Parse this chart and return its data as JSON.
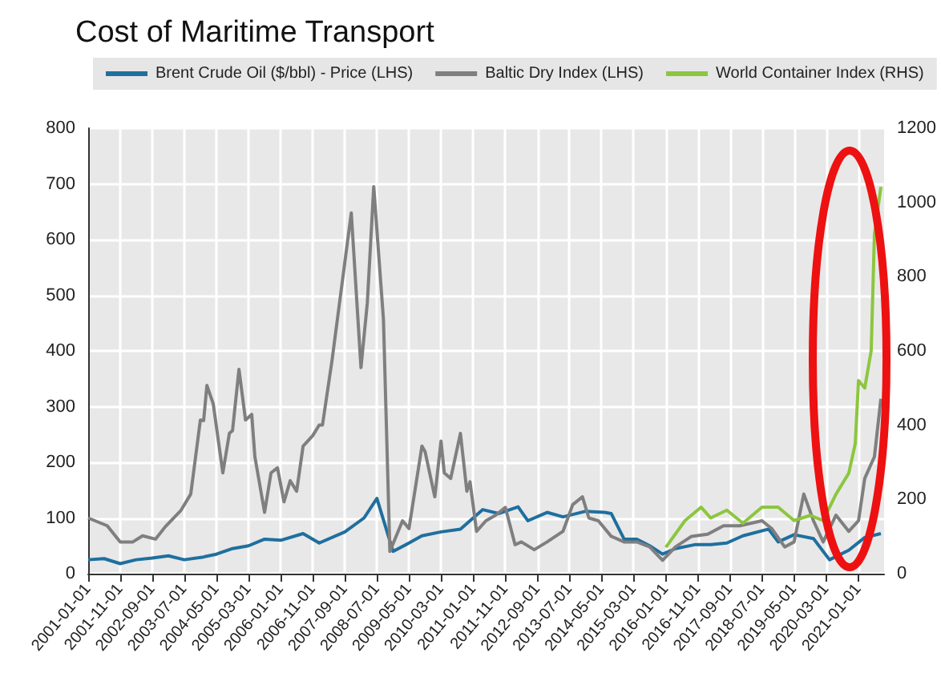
{
  "chart_data": {
    "type": "line",
    "title": "Cost of Maritime Transport",
    "legend": "top",
    "grid": true,
    "marker": "none",
    "line_style": "solid",
    "xlim": [
      "2001-01-01",
      "2021-09-01"
    ],
    "xticks": [
      "2001-01-01",
      "2001-11-01",
      "2002-09-01",
      "2003-07-01",
      "2004-05-01",
      "2005-03-01",
      "2006-01-01",
      "2006-11-01",
      "2007-09-01",
      "2008-07-01",
      "2009-05-01",
      "2010-03-01",
      "2011-01-01",
      "2011-11-01",
      "2012-09-01",
      "2013-07-01",
      "2014-05-01",
      "2015-03-01",
      "2016-01-01",
      "2016-11-01",
      "2017-09-01",
      "2018-07-01",
      "2019-05-01",
      "2020-03-01",
      "2021-01-01"
    ],
    "ylim": [
      0,
      800
    ],
    "yticks": [
      0,
      100,
      200,
      300,
      400,
      500,
      600,
      700,
      800
    ],
    "y2lim": [
      0,
      1200
    ],
    "y2ticks": [
      0,
      200,
      400,
      600,
      800,
      1000,
      1200
    ],
    "series": [
      {
        "name": "Brent Crude Oil ($/bbl) - Price (LHS)",
        "color": "#1f6f9f",
        "x": [
          "2001-01",
          "2001-06",
          "2001-11",
          "2002-04",
          "2002-09",
          "2003-02",
          "2003-07",
          "2004-01",
          "2004-05",
          "2004-10",
          "2005-03",
          "2005-08",
          "2006-01",
          "2006-08",
          "2007-01",
          "2007-09",
          "2008-03",
          "2008-07",
          "2008-12",
          "2009-05",
          "2009-09",
          "2010-03",
          "2010-09",
          "2011-04",
          "2011-09",
          "2012-03",
          "2012-06",
          "2012-12",
          "2013-05",
          "2013-12",
          "2014-06",
          "2014-08",
          "2014-12",
          "2015-04",
          "2015-08",
          "2015-12",
          "2016-04",
          "2016-10",
          "2017-03",
          "2017-08",
          "2018-01",
          "2018-09",
          "2018-12",
          "2019-05",
          "2019-11",
          "2020-04",
          "2020-10",
          "2021-03",
          "2021-08"
        ],
        "values": [
          25,
          27,
          18,
          25,
          28,
          32,
          25,
          30,
          35,
          45,
          50,
          62,
          60,
          72,
          55,
          75,
          100,
          135,
          40,
          55,
          68,
          75,
          80,
          115,
          108,
          120,
          95,
          110,
          102,
          112,
          110,
          108,
          62,
          62,
          50,
          35,
          45,
          52,
          52,
          55,
          68,
          80,
          57,
          70,
          63,
          25,
          42,
          65,
          72
        ]
      },
      {
        "name": "Baltic Dry Index (LHS)",
        "color": "#7f7f7f",
        "x": [
          "2001-01",
          "2001-07",
          "2001-11",
          "2002-03",
          "2002-06",
          "2002-10",
          "2003-01",
          "2003-06",
          "2003-09",
          "2003-12",
          "2004-01",
          "2004-02",
          "2004-04",
          "2004-07",
          "2004-09",
          "2004-10",
          "2004-12",
          "2005-02",
          "2005-04",
          "2005-05",
          "2005-08",
          "2005-10",
          "2005-12",
          "2006-02",
          "2006-04",
          "2006-06",
          "2006-08",
          "2006-11",
          "2007-01",
          "2007-02",
          "2007-05",
          "2007-11",
          "2008-02",
          "2008-04",
          "2008-06",
          "2008-09",
          "2008-11",
          "2009-03",
          "2009-05",
          "2009-09",
          "2009-10",
          "2010-01",
          "2010-03",
          "2010-04",
          "2010-06",
          "2010-09",
          "2010-11",
          "2010-12",
          "2011-02",
          "2011-05",
          "2011-08",
          "2011-11",
          "2012-02",
          "2012-04",
          "2012-08",
          "2012-12",
          "2013-05",
          "2013-08",
          "2013-11",
          "2014-01",
          "2014-04",
          "2014-08",
          "2014-12",
          "2015-04",
          "2015-08",
          "2015-12",
          "2016-04",
          "2016-09",
          "2017-02",
          "2017-07",
          "2017-12",
          "2018-07",
          "2018-10",
          "2019-02",
          "2019-05",
          "2019-08",
          "2019-11",
          "2020-02",
          "2020-06",
          "2020-10",
          "2021-01",
          "2021-03",
          "2021-06",
          "2021-08"
        ],
        "values": [
          100,
          86,
          57,
          57,
          68,
          62,
          84,
          114,
          143,
          276,
          275,
          338,
          305,
          181,
          252,
          257,
          367,
          276,
          286,
          210,
          110,
          181,
          190,
          129,
          167,
          148,
          229,
          248,
          267,
          267,
          381,
          648,
          370,
          486,
          695,
          457,
          40,
          95,
          81,
          229,
          219,
          138,
          238,
          181,
          171,
          252,
          148,
          165,
          76,
          95,
          105,
          119,
          52,
          57,
          43,
          57,
          76,
          124,
          138,
          100,
          95,
          67,
          57,
          57,
          48,
          24,
          48,
          67,
          71,
          86,
          86,
          95,
          81,
          48,
          57,
          143,
          95,
          57,
          105,
          76,
          95,
          171,
          210,
          314
        ]
      },
      {
        "name": "World Container Index (RHS)",
        "color": "#8cc63f",
        "axis": "y2",
        "x": [
          "2016-01",
          "2016-07",
          "2016-12",
          "2017-03",
          "2017-08",
          "2018-01",
          "2018-07",
          "2018-12",
          "2019-05",
          "2019-10",
          "2020-02",
          "2020-06",
          "2020-10",
          "2020-12",
          "2021-01",
          "2021-03",
          "2021-05",
          "2021-06",
          "2021-08"
        ],
        "values": [
          71,
          143,
          179,
          150,
          171,
          136,
          179,
          179,
          143,
          157,
          143,
          214,
          271,
          350,
          520,
          500,
          600,
          914,
          1042
        ]
      }
    ]
  }
}
